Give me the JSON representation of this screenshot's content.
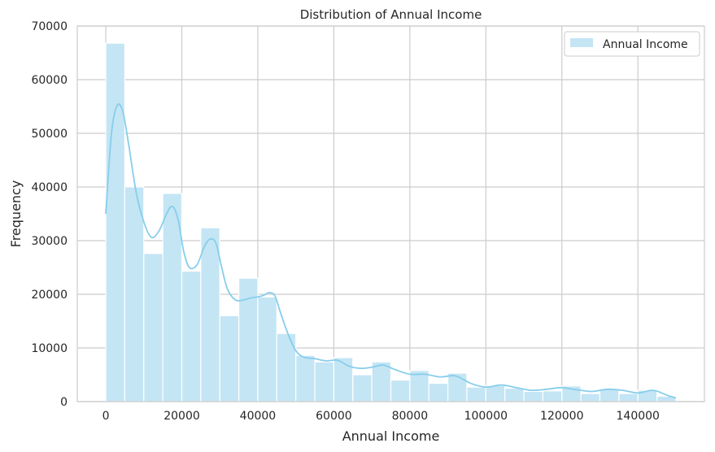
{
  "chart_data": {
    "type": "bar",
    "title": "Distribution of Annual Income",
    "xlabel": "Annual Income",
    "ylabel": "Frequency",
    "xlim": [
      -7500,
      157500
    ],
    "ylim": [
      0,
      70000
    ],
    "x_ticks": [
      0,
      20000,
      40000,
      60000,
      80000,
      100000,
      120000,
      140000
    ],
    "y_ticks": [
      0,
      10000,
      20000,
      30000,
      40000,
      50000,
      60000,
      70000
    ],
    "grid": true,
    "legend_position": "top-right",
    "colors": {
      "bar_fill": "#c4e5f4",
      "kde_line": "#87ceeb",
      "grid": "#cccccc",
      "axes_edge": "#cccccc"
    },
    "series": [
      {
        "name": "Annual Income",
        "bin_start": 0,
        "bin_width": 5000,
        "counts": [
          66800,
          40000,
          27600,
          38800,
          24300,
          32400,
          16000,
          23000,
          19500,
          12700,
          8600,
          7400,
          8200,
          5000,
          7400,
          4000,
          5800,
          3400,
          5300,
          2700,
          3000,
          2500,
          1900,
          2000,
          2900,
          1500,
          2300,
          1500,
          2100,
          1000
        ],
        "kde": {
          "x": [
            0,
            1500,
            3000,
            4500,
            6000,
            8000,
            10000,
            12000,
            14000,
            16000,
            17500,
            19000,
            20500,
            22000,
            24000,
            26000,
            27500,
            29000,
            30500,
            32000,
            34000,
            36000,
            38000,
            40000,
            41500,
            43000,
            44500,
            46000,
            48000,
            50000,
            52000,
            55000,
            58000,
            61000,
            64000,
            67000,
            70000,
            73000,
            76000,
            80000,
            84000,
            88000,
            92000,
            96000,
            100000,
            104000,
            108000,
            112000,
            116000,
            120000,
            124000,
            128000,
            132000,
            136000,
            140000,
            144000,
            148000,
            150000
          ],
          "y": [
            35000,
            50000,
            55200,
            54000,
            48000,
            39000,
            33500,
            30600,
            31800,
            35000,
            36400,
            34000,
            28000,
            25000,
            25500,
            29000,
            30300,
            29500,
            25000,
            21000,
            19000,
            18900,
            19300,
            19500,
            19800,
            20300,
            19700,
            16500,
            12500,
            9500,
            8300,
            8000,
            7600,
            7700,
            6600,
            6200,
            6400,
            6800,
            6000,
            5100,
            5100,
            4600,
            4800,
            3400,
            2700,
            3100,
            2600,
            2100,
            2300,
            2600,
            2200,
            1900,
            2300,
            2100,
            1600,
            2100,
            1100,
            700
          ]
        }
      }
    ]
  }
}
